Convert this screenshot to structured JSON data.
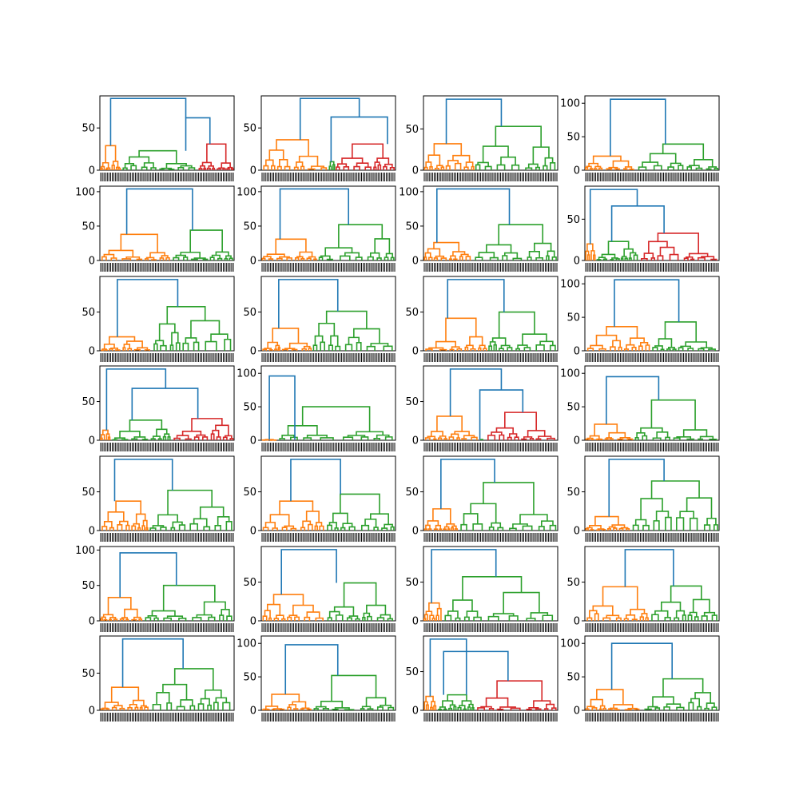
{
  "figure": {
    "description_type": "dendrogram-grid",
    "rows": 7,
    "cols": 4
  },
  "colors": {
    "orange": "#ff7f0e",
    "green": "#2ca02c",
    "red": "#d62728",
    "blue": "#1f77b4"
  },
  "chart_data": [
    {
      "type": "dendrogram",
      "ylim": [
        0,
        88
      ],
      "yticks": [
        0,
        50
      ],
      "top": [
        [
          0.08,
          0.64,
          85
        ],
        [
          0.64,
          0.82,
          62
        ]
      ],
      "clusters": [
        {
          "color": "orange",
          "x0": 0.0,
          "x1": 0.16,
          "h": 29
        },
        {
          "color": "green",
          "x0": 0.16,
          "x1": 0.73,
          "h": 23
        },
        {
          "color": "red",
          "x0": 0.73,
          "x1": 1.0,
          "h": 31
        }
      ]
    },
    {
      "type": "dendrogram",
      "ylim": [
        0,
        88
      ],
      "yticks": [
        0,
        50
      ],
      "top": [
        [
          0.29,
          0.73,
          85
        ],
        [
          0.52,
          0.94,
          63
        ]
      ],
      "clusters": [
        {
          "color": "orange",
          "x0": 0.0,
          "x1": 0.5,
          "h": 36
        },
        {
          "color": "green",
          "x0": 0.5,
          "x1": 0.55,
          "h": 10
        },
        {
          "color": "red",
          "x0": 0.55,
          "x1": 1.0,
          "h": 31
        }
      ]
    },
    {
      "type": "dendrogram",
      "ylim": [
        0,
        90
      ],
      "yticks": [
        0,
        50
      ],
      "top": [
        [
          0.17,
          0.58,
          86
        ]
      ],
      "clusters": [
        {
          "color": "orange",
          "x0": 0.0,
          "x1": 0.38,
          "h": 32
        },
        {
          "color": "green",
          "x0": 0.38,
          "x1": 1.0,
          "h": 53
        }
      ]
    },
    {
      "type": "dendrogram",
      "ylim": [
        0,
        111
      ],
      "yticks": [
        0,
        50,
        100
      ],
      "top": [
        [
          0.19,
          0.6,
          106
        ]
      ],
      "clusters": [
        {
          "color": "orange",
          "x0": 0.0,
          "x1": 0.38,
          "h": 21
        },
        {
          "color": "green",
          "x0": 0.38,
          "x1": 1.0,
          "h": 39
        }
      ]
    },
    {
      "type": "dendrogram",
      "ylim": [
        0,
        108
      ],
      "yticks": [
        0,
        50,
        100
      ],
      "top": [
        [
          0.2,
          0.69,
          104
        ]
      ],
      "clusters": [
        {
          "color": "orange",
          "x0": 0.0,
          "x1": 0.53,
          "h": 38
        },
        {
          "color": "green",
          "x0": 0.53,
          "x1": 1.0,
          "h": 44
        }
      ]
    },
    {
      "type": "dendrogram",
      "ylim": [
        0,
        108
      ],
      "yticks": [
        0,
        50,
        100
      ],
      "top": [
        [
          0.14,
          0.65,
          104
        ]
      ],
      "clusters": [
        {
          "color": "orange",
          "x0": 0.0,
          "x1": 0.42,
          "h": 31
        },
        {
          "color": "green",
          "x0": 0.42,
          "x1": 1.0,
          "h": 52
        }
      ]
    },
    {
      "type": "dendrogram",
      "ylim": [
        0,
        108
      ],
      "yticks": [
        0,
        50,
        100
      ],
      "top": [
        [
          0.1,
          0.64,
          104
        ]
      ],
      "clusters": [
        {
          "color": "orange",
          "x0": 0.0,
          "x1": 0.36,
          "h": 26
        },
        {
          "color": "green",
          "x0": 0.36,
          "x1": 1.0,
          "h": 52
        }
      ]
    },
    {
      "type": "dendrogram",
      "ylim": [
        0,
        90
      ],
      "yticks": [
        0,
        50
      ],
      "top": [
        [
          0.04,
          0.39,
          86
        ],
        [
          0.2,
          0.59,
          66
        ]
      ],
      "clusters": [
        {
          "color": "orange",
          "x0": 0.0,
          "x1": 0.08,
          "h": 20
        },
        {
          "color": "green",
          "x0": 0.08,
          "x1": 0.4,
          "h": 23
        },
        {
          "color": "red",
          "x0": 0.4,
          "x1": 1.0,
          "h": 33
        }
      ]
    },
    {
      "type": "dendrogram",
      "ylim": [
        0,
        96
      ],
      "yticks": [
        0,
        50
      ],
      "top": [
        [
          0.13,
          0.58,
          92
        ]
      ],
      "clusters": [
        {
          "color": "orange",
          "x0": 0.0,
          "x1": 0.39,
          "h": 18
        },
        {
          "color": "green",
          "x0": 0.39,
          "x1": 1.0,
          "h": 57
        }
      ]
    },
    {
      "type": "dendrogram",
      "ylim": [
        0,
        96
      ],
      "yticks": [
        0,
        50
      ],
      "top": [
        [
          0.13,
          0.57,
          92
        ]
      ],
      "clusters": [
        {
          "color": "orange",
          "x0": 0.0,
          "x1": 0.38,
          "h": 29
        },
        {
          "color": "green",
          "x0": 0.38,
          "x1": 1.0,
          "h": 51
        }
      ]
    },
    {
      "type": "dendrogram",
      "ylim": [
        0,
        96
      ],
      "yticks": [
        0,
        50
      ],
      "top": [
        [
          0.18,
          0.6,
          92
        ]
      ],
      "clusters": [
        {
          "color": "orange",
          "x0": 0.0,
          "x1": 0.48,
          "h": 42
        },
        {
          "color": "green",
          "x0": 0.48,
          "x1": 1.0,
          "h": 50
        }
      ]
    },
    {
      "type": "dendrogram",
      "ylim": [
        0,
        111
      ],
      "yticks": [
        0,
        50,
        100
      ],
      "top": [
        [
          0.22,
          0.7,
          106
        ]
      ],
      "clusters": [
        {
          "color": "orange",
          "x0": 0.0,
          "x1": 0.49,
          "h": 36
        },
        {
          "color": "green",
          "x0": 0.49,
          "x1": 1.0,
          "h": 43
        }
      ]
    },
    {
      "type": "dendrogram",
      "ylim": [
        0,
        96
      ],
      "yticks": [
        0,
        50
      ],
      "top": [
        [
          0.05,
          0.49,
          92
        ],
        [
          0.24,
          0.73,
          67
        ]
      ],
      "clusters": [
        {
          "color": "orange",
          "x0": 0.0,
          "x1": 0.08,
          "h": 13
        },
        {
          "color": "green",
          "x0": 0.08,
          "x1": 0.53,
          "h": 26
        },
        {
          "color": "red",
          "x0": 0.53,
          "x1": 1.0,
          "h": 28
        }
      ]
    },
    {
      "type": "dendrogram",
      "ylim": [
        0,
        111
      ],
      "yticks": [
        0,
        50,
        100
      ],
      "top": [
        [
          0.06,
          0.25,
          96
        ]
      ],
      "clusters": [
        {
          "color": "orange",
          "x0": 0.0,
          "x1": 0.12,
          "h": 1
        },
        {
          "color": "green",
          "x0": 0.12,
          "x1": 1.0,
          "h": 50
        }
      ]
    },
    {
      "type": "dendrogram",
      "ylim": [
        0,
        96
      ],
      "yticks": [
        0,
        50
      ],
      "top": [
        [
          0.2,
          0.58,
          92
        ],
        [
          0.42,
          0.74,
          65
        ]
      ],
      "clusters": [
        {
          "color": "orange",
          "x0": 0.0,
          "x1": 0.42,
          "h": 31
        },
        {
          "color": "green",
          "x0": 0.42,
          "x1": 0.45,
          "h": 1
        },
        {
          "color": "red",
          "x0": 0.45,
          "x1": 1.0,
          "h": 36
        }
      ]
    },
    {
      "type": "dendrogram",
      "ylim": [
        0,
        111
      ],
      "yticks": [
        0,
        50,
        100
      ],
      "top": [
        [
          0.16,
          0.55,
          95
        ]
      ],
      "clusters": [
        {
          "color": "orange",
          "x0": 0.0,
          "x1": 0.37,
          "h": 24
        },
        {
          "color": "green",
          "x0": 0.37,
          "x1": 1.0,
          "h": 60
        }
      ]
    },
    {
      "type": "dendrogram",
      "ylim": [
        0,
        96
      ],
      "yticks": [
        0,
        50
      ],
      "top": [
        [
          0.11,
          0.54,
          92
        ]
      ],
      "clusters": [
        {
          "color": "orange",
          "x0": 0.0,
          "x1": 0.36,
          "h": 38
        },
        {
          "color": "green",
          "x0": 0.36,
          "x1": 1.0,
          "h": 52
        }
      ]
    },
    {
      "type": "dendrogram",
      "ylim": [
        0,
        96
      ],
      "yticks": [
        0,
        50
      ],
      "top": [
        [
          0.22,
          0.59,
          92
        ]
      ],
      "clusters": [
        {
          "color": "orange",
          "x0": 0.0,
          "x1": 0.48,
          "h": 38
        },
        {
          "color": "green",
          "x0": 0.48,
          "x1": 1.0,
          "h": 47
        }
      ]
    },
    {
      "type": "dendrogram",
      "ylim": [
        0,
        96
      ],
      "yticks": [
        0,
        50
      ],
      "top": [
        [
          0.13,
          0.53,
          92
        ]
      ],
      "clusters": [
        {
          "color": "orange",
          "x0": 0.0,
          "x1": 0.26,
          "h": 28
        },
        {
          "color": "green",
          "x0": 0.26,
          "x1": 1.0,
          "h": 62
        }
      ]
    },
    {
      "type": "dendrogram",
      "ylim": [
        0,
        96
      ],
      "yticks": [
        0,
        50
      ],
      "top": [
        [
          0.18,
          0.59,
          92
        ]
      ],
      "clusters": [
        {
          "color": "orange",
          "x0": 0.0,
          "x1": 0.34,
          "h": 18
        },
        {
          "color": "green",
          "x0": 0.34,
          "x1": 1.0,
          "h": 64
        }
      ]
    },
    {
      "type": "dendrogram",
      "ylim": [
        0,
        105
      ],
      "yticks": [
        0,
        50,
        100
      ],
      "top": [
        [
          0.15,
          0.57,
          96
        ]
      ],
      "clusters": [
        {
          "color": "orange",
          "x0": 0.0,
          "x1": 0.32,
          "h": 33
        },
        {
          "color": "green",
          "x0": 0.32,
          "x1": 1.0,
          "h": 50
        }
      ]
    },
    {
      "type": "dendrogram",
      "ylim": [
        0,
        96
      ],
      "yticks": [
        0,
        50
      ],
      "top": [
        [
          0.15,
          0.56,
          92
        ]
      ],
      "clusters": [
        {
          "color": "orange",
          "x0": 0.0,
          "x1": 0.48,
          "h": 34
        },
        {
          "color": "green",
          "x0": 0.48,
          "x1": 1.0,
          "h": 49
        }
      ]
    },
    {
      "type": "dendrogram",
      "ylim": [
        0,
        96
      ],
      "yticks": [
        0,
        50
      ],
      "top": [
        [
          0.06,
          0.54,
          92
        ]
      ],
      "clusters": [
        {
          "color": "orange",
          "x0": 0.0,
          "x1": 0.14,
          "h": 23
        },
        {
          "color": "green",
          "x0": 0.14,
          "x1": 1.0,
          "h": 57
        }
      ]
    },
    {
      "type": "dendrogram",
      "ylim": [
        0,
        96
      ],
      "yticks": [
        0,
        50
      ],
      "top": [
        [
          0.3,
          0.66,
          92
        ]
      ],
      "clusters": [
        {
          "color": "orange",
          "x0": 0.0,
          "x1": 0.48,
          "h": 44
        },
        {
          "color": "green",
          "x0": 0.48,
          "x1": 1.0,
          "h": 45
        }
      ]
    },
    {
      "type": "dendrogram",
      "ylim": [
        0,
        100
      ],
      "yticks": [
        0,
        50
      ],
      "top": [
        [
          0.17,
          0.62,
          96
        ]
      ],
      "clusters": [
        {
          "color": "orange",
          "x0": 0.0,
          "x1": 0.37,
          "h": 31
        },
        {
          "color": "green",
          "x0": 0.37,
          "x1": 1.0,
          "h": 56
        }
      ]
    },
    {
      "type": "dendrogram",
      "ylim": [
        0,
        111
      ],
      "yticks": [
        0,
        50,
        100
      ],
      "top": [
        [
          0.18,
          0.57,
          98
        ]
      ],
      "clusters": [
        {
          "color": "orange",
          "x0": 0.0,
          "x1": 0.38,
          "h": 24
        },
        {
          "color": "green",
          "x0": 0.38,
          "x1": 1.0,
          "h": 52
        }
      ]
    },
    {
      "type": "dendrogram",
      "ylim": [
        0,
        96
      ],
      "yticks": [
        0,
        50
      ],
      "top": [
        [
          0.05,
          0.32,
          92
        ],
        [
          0.15,
          0.63,
          76
        ]
      ],
      "clusters": [
        {
          "color": "orange",
          "x0": 0.0,
          "x1": 0.1,
          "h": 18
        },
        {
          "color": "green",
          "x0": 0.1,
          "x1": 0.38,
          "h": 20
        },
        {
          "color": "red",
          "x0": 0.38,
          "x1": 1.0,
          "h": 38
        }
      ]
    },
    {
      "type": "dendrogram",
      "ylim": [
        0,
        111
      ],
      "yticks": [
        0,
        50,
        100
      ],
      "top": [
        [
          0.2,
          0.65,
          100
        ]
      ],
      "clusters": [
        {
          "color": "orange",
          "x0": 0.0,
          "x1": 0.42,
          "h": 31
        },
        {
          "color": "green",
          "x0": 0.42,
          "x1": 1.0,
          "h": 47
        }
      ]
    }
  ]
}
